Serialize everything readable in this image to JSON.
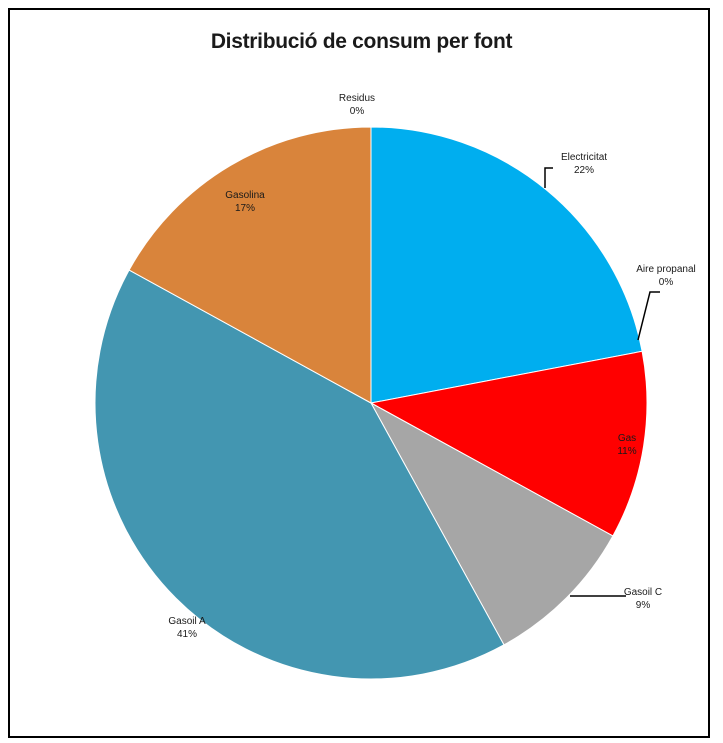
{
  "chart_data": {
    "type": "pie",
    "title": "Distribució de consum per font",
    "slices": [
      {
        "name": "Electricitat",
        "pct_label": "22%",
        "value": 22,
        "color": "#00AEEF"
      },
      {
        "name": "Aire propanal",
        "pct_label": "0%",
        "value": 0,
        "color": "#8B0000"
      },
      {
        "name": "Gas",
        "pct_label": "11%",
        "value": 11,
        "color": "#FF0000"
      },
      {
        "name": "Gasoil C",
        "pct_label": "9%",
        "value": 9,
        "color": "#A6A6A6"
      },
      {
        "name": "Gasoil A",
        "pct_label": "41%",
        "value": 41,
        "color": "#4396B1"
      },
      {
        "name": "Gasolina",
        "pct_label": "17%",
        "value": 17,
        "color": "#D9843B"
      },
      {
        "name": "Residus",
        "pct_label": "0%",
        "value": 0,
        "color": "#7F7F7F"
      }
    ]
  }
}
